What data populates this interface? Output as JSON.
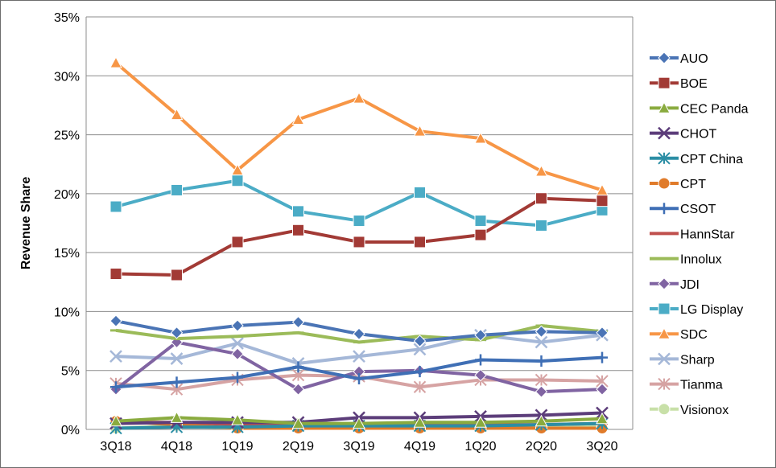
{
  "chart_data": {
    "type": "line",
    "title": "",
    "xlabel": "",
    "ylabel": "Revenue Share",
    "ylim": [
      0,
      35
    ],
    "yticks": [
      "0%",
      "5%",
      "10%",
      "15%",
      "20%",
      "25%",
      "30%",
      "35%"
    ],
    "categories": [
      "3Q18",
      "4Q18",
      "1Q19",
      "2Q19",
      "3Q19",
      "4Q19",
      "1Q20",
      "2Q20",
      "3Q20"
    ],
    "grid": "horizontal",
    "legend_position": "right",
    "series": [
      {
        "name": "AUO",
        "color": "#4a74b5",
        "marker": "diamond",
        "values": [
          9.2,
          8.2,
          8.8,
          9.1,
          8.1,
          7.5,
          8.0,
          8.3,
          8.2
        ]
      },
      {
        "name": "BOE",
        "color": "#a23a35",
        "marker": "square",
        "values": [
          13.2,
          13.1,
          15.9,
          16.9,
          15.9,
          15.9,
          16.5,
          19.6,
          19.4
        ]
      },
      {
        "name": "CEC Panda",
        "color": "#8aab3f",
        "marker": "triangle",
        "values": [
          0.7,
          1.0,
          0.8,
          0.5,
          0.5,
          0.6,
          0.6,
          0.7,
          0.9
        ]
      },
      {
        "name": "CHOT",
        "color": "#5c3d7a",
        "marker": "x",
        "values": [
          0.5,
          0.6,
          0.6,
          0.6,
          1.0,
          1.0,
          1.1,
          1.2,
          1.4
        ]
      },
      {
        "name": "CPT China",
        "color": "#2c8ea5",
        "marker": "asterisk",
        "values": [
          0.1,
          0.2,
          0.2,
          0.3,
          0.3,
          0.3,
          0.3,
          0.4,
          0.5
        ]
      },
      {
        "name": "CPT",
        "color": "#e07b2a",
        "marker": "circle",
        "values": [
          0.7,
          0.4,
          0.1,
          0.1,
          0.1,
          0.1,
          0.1,
          0.1,
          0.1
        ]
      },
      {
        "name": "CSOT",
        "color": "#3f6fb5",
        "marker": "plus",
        "values": [
          3.6,
          4.0,
          4.4,
          5.3,
          4.3,
          4.9,
          5.9,
          5.8,
          6.1
        ]
      },
      {
        "name": "HannStar",
        "color": "#c0504d",
        "marker": "dash",
        "values": [
          0.6,
          0.6,
          0.4,
          0.4,
          0.4,
          0.4,
          0.4,
          0.4,
          0.5
        ]
      },
      {
        "name": "Innolux",
        "color": "#9bbb59",
        "marker": "dash",
        "values": [
          8.4,
          7.7,
          7.9,
          8.2,
          7.4,
          7.9,
          7.6,
          8.8,
          8.3
        ]
      },
      {
        "name": "JDI",
        "color": "#8064a2",
        "marker": "diamond",
        "values": [
          3.4,
          7.4,
          6.4,
          3.4,
          4.9,
          5.0,
          4.6,
          3.2,
          3.4
        ]
      },
      {
        "name": "LG Display",
        "color": "#4bacc6",
        "marker": "square",
        "values": [
          18.9,
          20.3,
          21.1,
          18.5,
          17.7,
          20.1,
          17.7,
          17.3,
          18.6
        ]
      },
      {
        "name": "SDC",
        "color": "#f79646",
        "marker": "triangle",
        "values": [
          31.1,
          26.7,
          22.0,
          26.3,
          28.1,
          25.3,
          24.7,
          21.9,
          20.3
        ]
      },
      {
        "name": "Sharp",
        "color": "#a5b8d8",
        "marker": "x",
        "values": [
          6.2,
          6.0,
          7.3,
          5.6,
          6.2,
          6.8,
          8.0,
          7.4,
          8.0
        ]
      },
      {
        "name": "Tianma",
        "color": "#d6a3a3",
        "marker": "asterisk",
        "values": [
          3.9,
          3.4,
          4.2,
          4.6,
          4.5,
          3.6,
          4.2,
          4.2,
          4.1
        ]
      },
      {
        "name": "Visionox",
        "color": "#c8e0a8",
        "marker": "circle",
        "values": [
          0.1,
          0.3,
          0.1,
          0.5,
          0.3,
          0.3,
          0.2,
          0.3,
          0.3
        ]
      }
    ]
  }
}
